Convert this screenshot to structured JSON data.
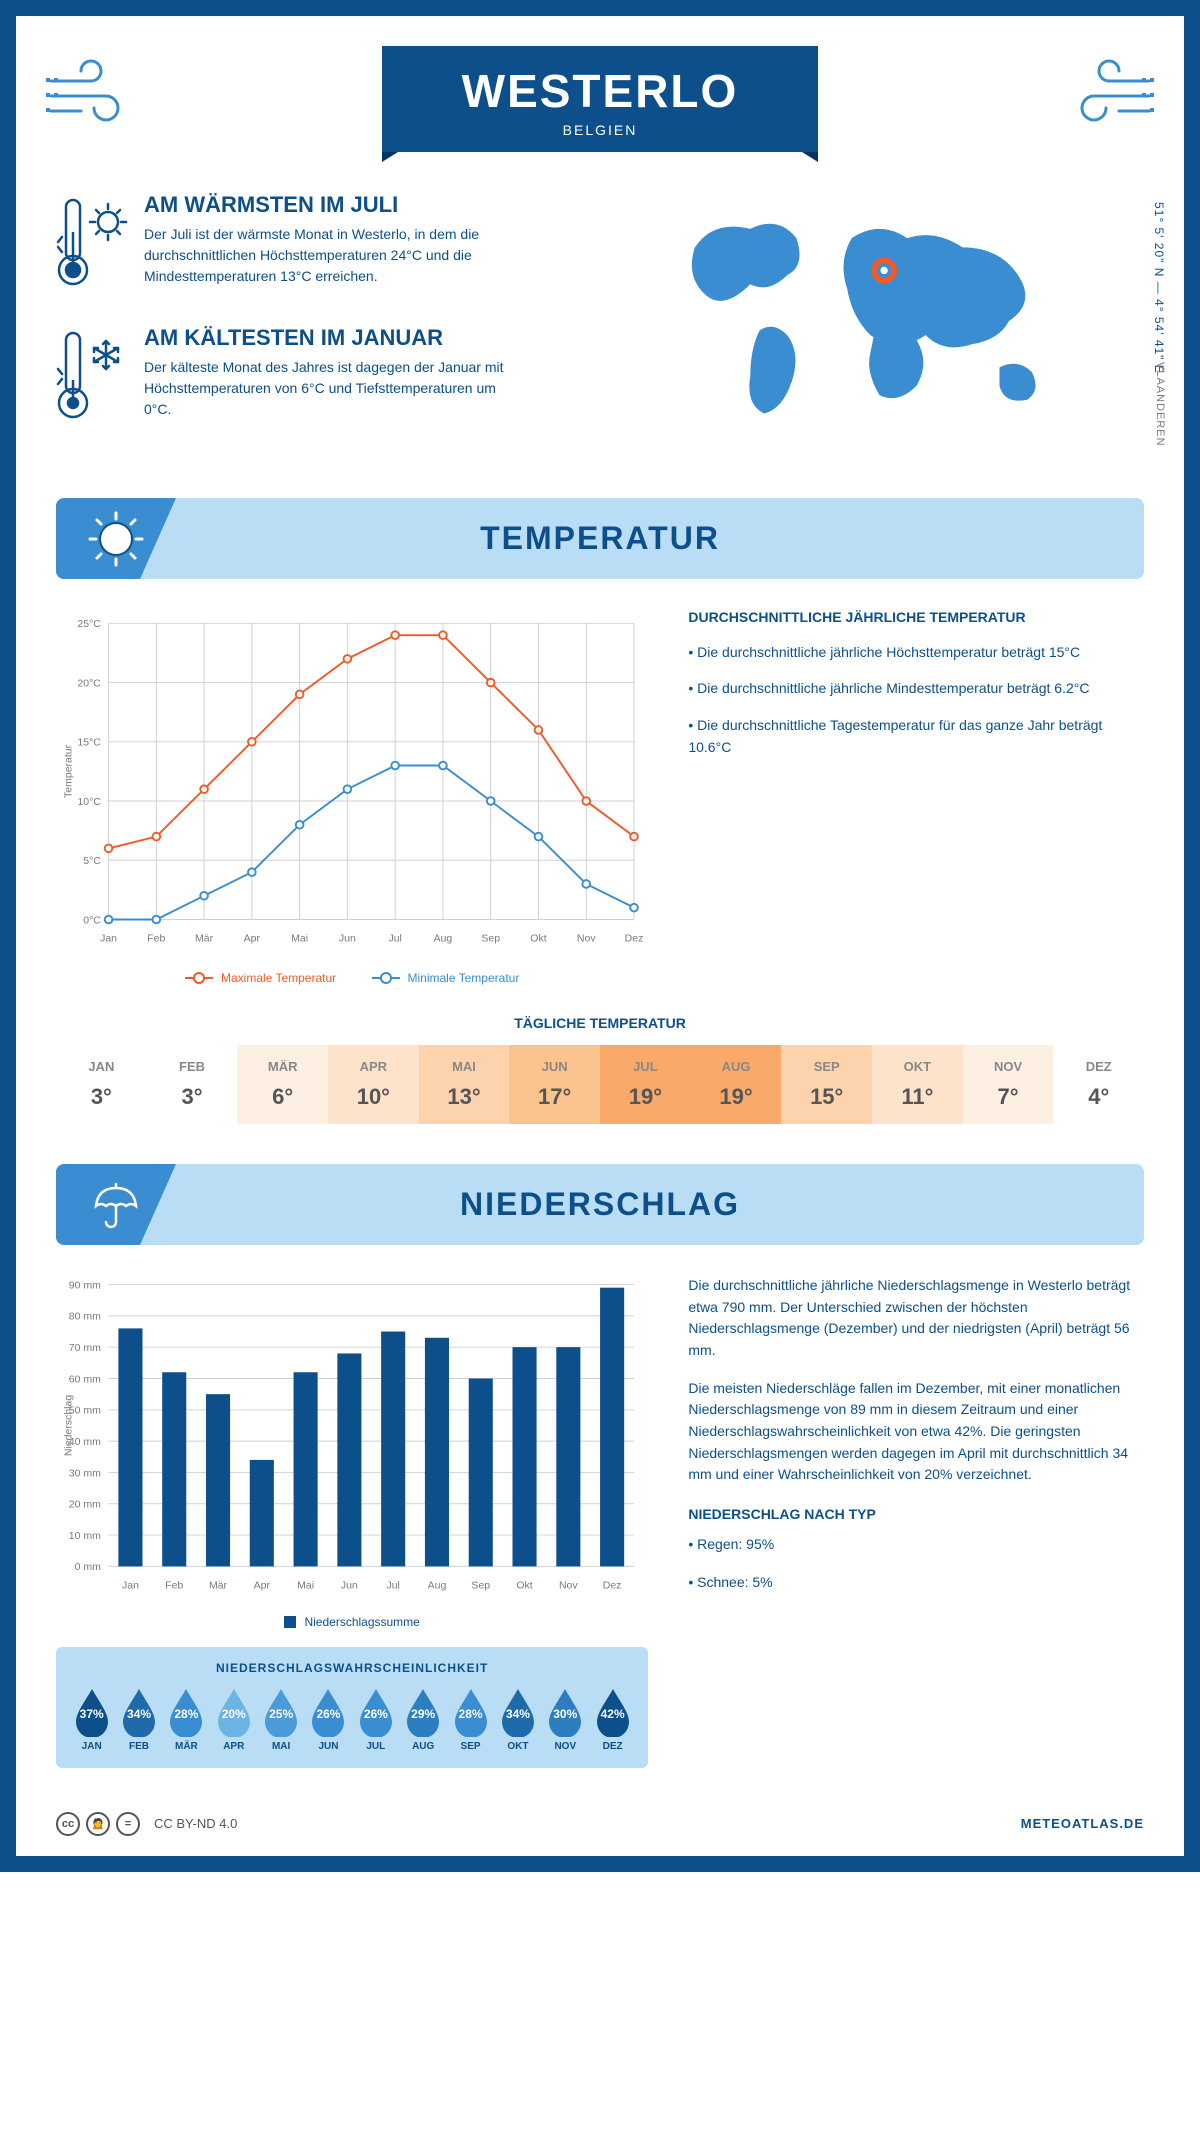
{
  "header": {
    "city": "WESTERLO",
    "country": "BELGIEN",
    "coords": "51° 5' 20\" N — 4° 54' 41\" E",
    "region": "VLAANDEREN"
  },
  "colors": {
    "primary": "#0d4f8b",
    "accent": "#3a8dd0",
    "lightblue": "#b8ddf5",
    "orange": "#f15a29",
    "blue_line": "#3a8dd0",
    "grid": "#d0d0d0",
    "text_grey": "#7a7a7a",
    "bar_fill": "#0d4f8b"
  },
  "facts": {
    "warm": {
      "title": "AM WÄRMSTEN IM JULI",
      "text": "Der Juli ist der wärmste Monat in Westerlo, in dem die durchschnittlichen Höchsttemperaturen 24°C und die Mindesttemperaturen 13°C erreichen."
    },
    "cold": {
      "title": "AM KÄLTESTEN IM JANUAR",
      "text": "Der kälteste Monat des Jahres ist dagegen der Januar mit Höchsttemperaturen von 6°C und Tiefsttemperaturen um 0°C."
    }
  },
  "temperature_section": {
    "heading": "TEMPERATUR",
    "summary_title": "DURCHSCHNITTLICHE JÄHRLICHE TEMPERATUR",
    "bullet1": "• Die durchschnittliche jährliche Höchsttemperatur beträgt 15°C",
    "bullet2": "• Die durchschnittliche jährliche Mindesttemperatur beträgt 6.2°C",
    "bullet3": "• Die durchschnittliche Tagestemperatur für das ganze Jahr beträgt 10.6°C",
    "legend_max": "Maximale Temperatur",
    "legend_min": "Minimale Temperatur",
    "y_axis_label": "Temperatur",
    "chart": {
      "months": [
        "Jan",
        "Feb",
        "Mär",
        "Apr",
        "Mai",
        "Jun",
        "Jul",
        "Aug",
        "Sep",
        "Okt",
        "Nov",
        "Dez"
      ],
      "max_values": [
        6,
        7,
        11,
        15,
        19,
        22,
        24,
        24,
        20,
        16,
        10,
        7
      ],
      "min_values": [
        0,
        0,
        2,
        4,
        8,
        11,
        13,
        13,
        10,
        7,
        3,
        1
      ],
      "ylim": [
        0,
        25
      ],
      "ytick_step": 5,
      "y_unit": "°C",
      "max_color": "#f15a29",
      "min_color": "#3a8dd0",
      "line_width": 2,
      "marker_radius": 4,
      "grid_color": "#d0d0d0",
      "background": "#ffffff"
    }
  },
  "daily_temp": {
    "title": "TÄGLICHE TEMPERATUR",
    "months": [
      "JAN",
      "FEB",
      "MÄR",
      "APR",
      "MAI",
      "JUN",
      "JUL",
      "AUG",
      "SEP",
      "OKT",
      "NOV",
      "DEZ"
    ],
    "values": [
      "3°",
      "3°",
      "6°",
      "10°",
      "13°",
      "17°",
      "19°",
      "19°",
      "15°",
      "11°",
      "7°",
      "4°"
    ],
    "cell_colors": [
      "#ffffff",
      "#ffffff",
      "#fdf0e3",
      "#fde3cb",
      "#fcd3ac",
      "#fbc38d",
      "#f9a96a",
      "#f9a96a",
      "#fcd3ac",
      "#fde3cb",
      "#fdf0e3",
      "#ffffff"
    ]
  },
  "precip_section": {
    "heading": "NIEDERSCHLAG",
    "para1": "Die durchschnittliche jährliche Niederschlagsmenge in Westerlo beträgt etwa 790 mm. Der Unterschied zwischen der höchsten Niederschlagsmenge (Dezember) und der niedrigsten (April) beträgt 56 mm.",
    "para2": "Die meisten Niederschläge fallen im Dezember, mit einer monatlichen Niederschlagsmenge von 89 mm in diesem Zeitraum und einer Niederschlagswahrscheinlichkeit von etwa 42%. Die geringsten Niederschlagsmengen werden dagegen im April mit durchschnittlich 34 mm und einer Wahrscheinlichkeit von 20% verzeichnet.",
    "type_title": "NIEDERSCHLAG NACH TYP",
    "type_rain": "• Regen: 95%",
    "type_snow": "• Schnee: 5%",
    "legend": "Niederschlagssumme",
    "y_axis_label": "Niederschlag",
    "chart": {
      "months": [
        "Jan",
        "Feb",
        "Mär",
        "Apr",
        "Mai",
        "Jun",
        "Jul",
        "Aug",
        "Sep",
        "Okt",
        "Nov",
        "Dez"
      ],
      "values": [
        76,
        62,
        55,
        34,
        62,
        68,
        75,
        73,
        60,
        70,
        70,
        89
      ],
      "ylim": [
        0,
        90
      ],
      "ytick_step": 10,
      "y_unit": " mm",
      "bar_color": "#0d4f8b",
      "bar_width_ratio": 0.55,
      "grid_color": "#d0d0d0",
      "background": "#ffffff"
    },
    "probability": {
      "title": "NIEDERSCHLAGSWAHRSCHEINLICHKEIT",
      "months": [
        "JAN",
        "FEB",
        "MÄR",
        "APR",
        "MAI",
        "JUN",
        "JUL",
        "AUG",
        "SEP",
        "OKT",
        "NOV",
        "DEZ"
      ],
      "values": [
        "37%",
        "34%",
        "28%",
        "20%",
        "25%",
        "26%",
        "26%",
        "29%",
        "28%",
        "34%",
        "30%",
        "42%"
      ],
      "drop_colors": [
        "#0d4f8b",
        "#1f6aa8",
        "#3a8dd0",
        "#6bb4e4",
        "#4b9bd8",
        "#3a8dd0",
        "#3a8dd0",
        "#2d7ec0",
        "#3a8dd0",
        "#1f6aa8",
        "#2d7ec0",
        "#0d4f8b"
      ]
    }
  },
  "footer": {
    "license": "CC BY-ND 4.0",
    "site": "METEOATLAS.DE"
  }
}
